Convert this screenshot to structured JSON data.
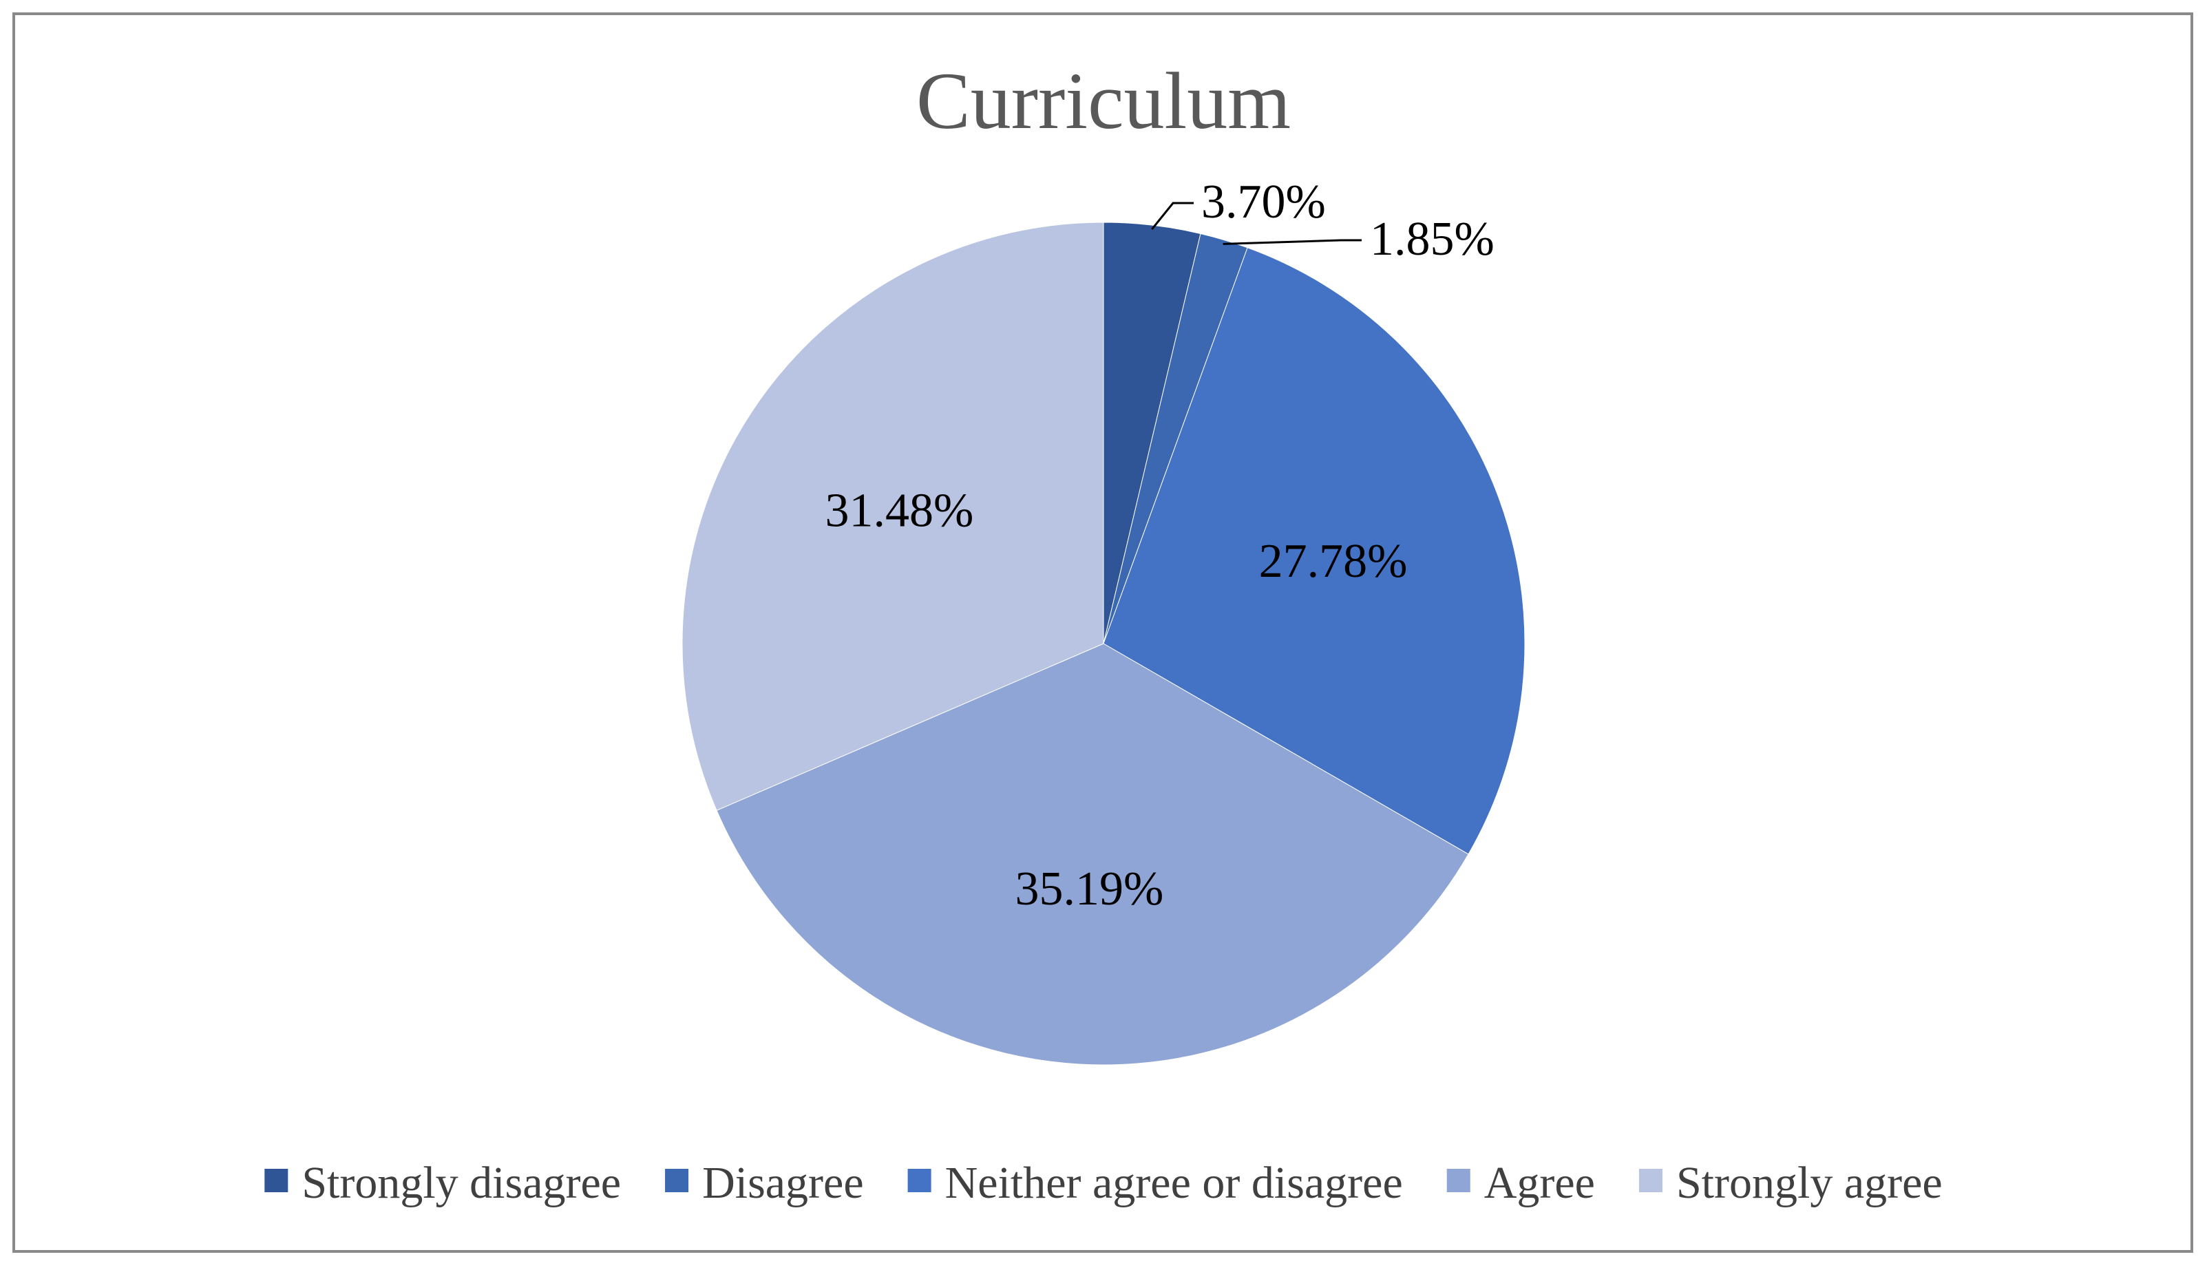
{
  "chart_data": {
    "type": "pie",
    "title": "Curriculum",
    "categories": [
      "Strongly disagree",
      "Disagree",
      "Neither agree or disagree",
      "Agree",
      "Strongly agree"
    ],
    "values": [
      3.7,
      1.85,
      27.78,
      35.19,
      31.48
    ],
    "labels": [
      "3.70%",
      "1.85%",
      "27.78%",
      "35.19%",
      "31.48%"
    ],
    "colors": [
      "#2f5597",
      "#3c68b2",
      "#4472c4",
      "#8fa5d5",
      "#b9c4e2"
    ],
    "start_angle_deg": 0,
    "direction": "clockwise",
    "legend_position": "bottom"
  }
}
